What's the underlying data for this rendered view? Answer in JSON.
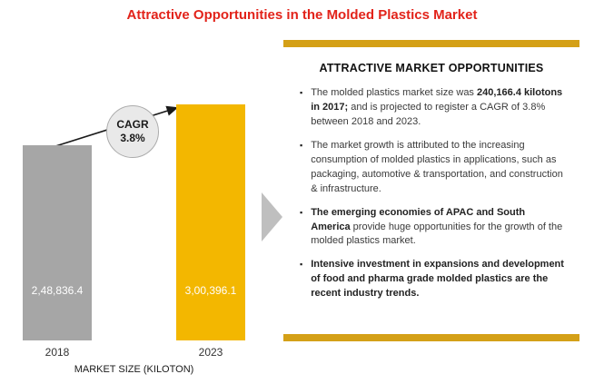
{
  "header": {
    "title": "Attractive Opportunities in the Molded Plastics Market",
    "title_color": "#e2231a"
  },
  "chart_data": {
    "type": "bar",
    "categories": [
      "2018",
      "2023"
    ],
    "values": [
      248836.4,
      300396.1
    ],
    "value_labels": [
      "2,48,836.4",
      "3,00,396.1"
    ],
    "title": "Attractive Opportunities in the Molded Plastics Market",
    "xlabel": "MARKET SIZE (KILOTON)",
    "ylabel": "",
    "bar_colors": [
      "#a6a6a6",
      "#f3b700"
    ],
    "grid": false,
    "legend_position": "none",
    "annotation": {
      "label": "CAGR",
      "value": "3.8%"
    }
  },
  "panel": {
    "title": "ATTRACTIVE MARKET OPPORTUNITIES",
    "accent_color": "#d4a017",
    "bullets": [
      {
        "runs": [
          {
            "text": "The molded plastics market size was ",
            "bold": false
          },
          {
            "text": "240,166.4 kilotons in 2017;",
            "bold": true
          },
          {
            "text": " and is projected to register a CAGR of 3.8% between 2018 and 2023.",
            "bold": false
          }
        ]
      },
      {
        "runs": [
          {
            "text": "The market growth is attributed to the increasing consumption of molded plastics in applications, such as packaging, automotive & transportation, and construction & infrastructure.",
            "bold": false
          }
        ]
      },
      {
        "runs": [
          {
            "text": "The emerging economies of APAC and South America",
            "bold": true
          },
          {
            "text": " provide huge opportunities for the growth of the molded plastics market.",
            "bold": false
          }
        ]
      },
      {
        "runs": [
          {
            "text": "Intensive investment in expansions and development of food and pharma grade molded plastics are the recent industry trends.",
            "bold": true
          }
        ]
      }
    ]
  }
}
